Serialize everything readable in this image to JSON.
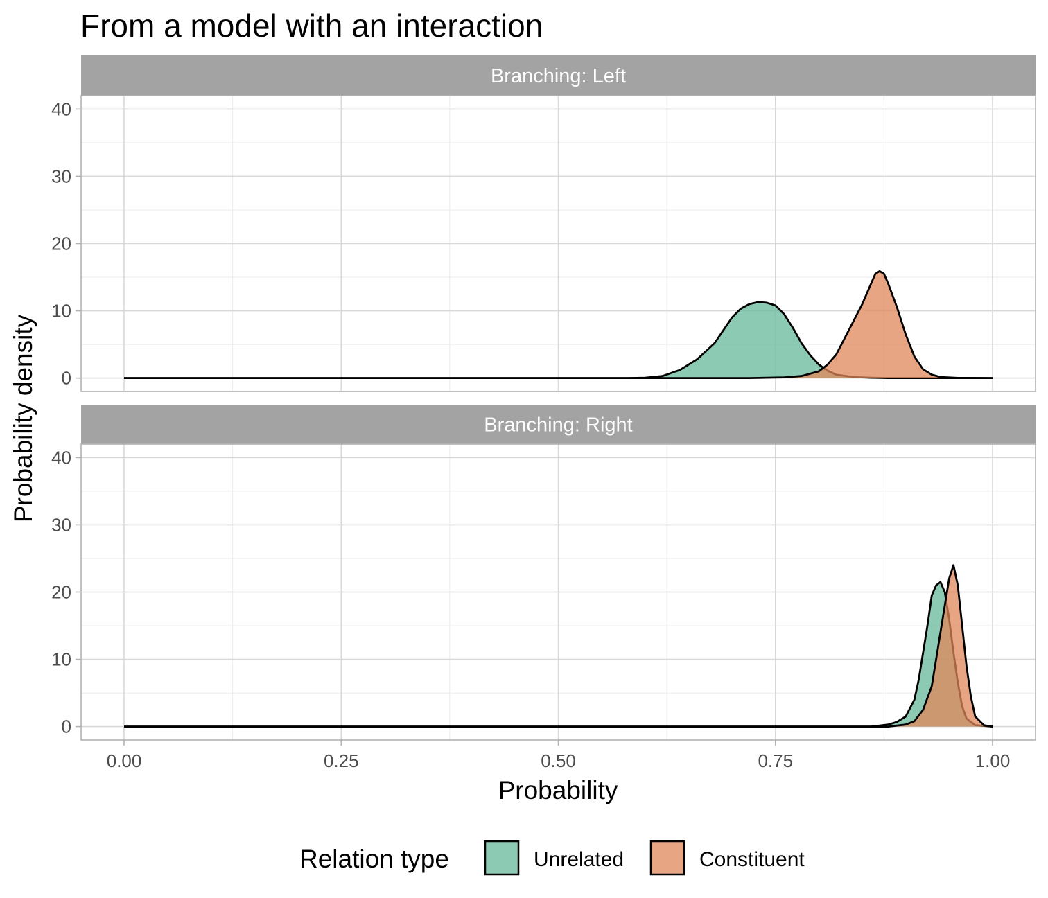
{
  "chart_data": {
    "type": "area",
    "title": "From a model with an interaction",
    "xlabel": "Probability",
    "ylabel": "Probability density",
    "xlim": [
      0,
      1
    ],
    "ylim": [
      -2,
      42
    ],
    "x_ticks": [
      "0.00",
      "0.25",
      "0.50",
      "0.75",
      "1.00"
    ],
    "y_ticks": [
      "0",
      "10",
      "20",
      "30",
      "40"
    ],
    "grid": true,
    "legend": {
      "title": "Relation type",
      "position": "bottom",
      "entries": [
        "Unrelated",
        "Constituent"
      ]
    },
    "colors": {
      "Unrelated": "#66b89a",
      "Constituent": "#e0875a"
    },
    "panels": [
      {
        "label": "Branching: Left",
        "series": [
          {
            "name": "Unrelated",
            "x": [
              0.0,
              0.58,
              0.6,
              0.62,
              0.64,
              0.66,
              0.68,
              0.7,
              0.71,
              0.72,
              0.73,
              0.74,
              0.75,
              0.76,
              0.77,
              0.78,
              0.79,
              0.8,
              0.81,
              0.82,
              0.84,
              0.86,
              0.88,
              1.0
            ],
            "y": [
              0,
              0,
              0.05,
              0.3,
              1.2,
              2.8,
              5.2,
              9.0,
              10.3,
              11.0,
              11.3,
              11.2,
              10.8,
              9.5,
              7.5,
              5.2,
              3.4,
              2.0,
              1.1,
              0.5,
              0.15,
              0.05,
              0,
              0
            ]
          },
          {
            "name": "Constituent",
            "x": [
              0.0,
              0.72,
              0.76,
              0.78,
              0.8,
              0.81,
              0.82,
              0.83,
              0.84,
              0.85,
              0.86,
              0.865,
              0.87,
              0.875,
              0.88,
              0.89,
              0.9,
              0.91,
              0.92,
              0.93,
              0.94,
              0.96,
              1.0
            ],
            "y": [
              0,
              0,
              0.1,
              0.3,
              1.0,
              2.0,
              3.5,
              6.0,
              8.5,
              11.0,
              14.0,
              15.5,
              15.9,
              15.5,
              14.0,
              10.5,
              6.5,
              3.2,
              1.3,
              0.5,
              0.15,
              0.02,
              0
            ]
          }
        ]
      },
      {
        "label": "Branching: Right",
        "series": [
          {
            "name": "Unrelated",
            "x": [
              0.0,
              0.86,
              0.88,
              0.89,
              0.9,
              0.91,
              0.915,
              0.92,
              0.925,
              0.93,
              0.935,
              0.94,
              0.945,
              0.95,
              0.955,
              0.96,
              0.965,
              0.97,
              0.98,
              1.0
            ],
            "y": [
              0,
              0,
              0.3,
              0.7,
              1.5,
              4.0,
              7.0,
              11.0,
              15.0,
              19.5,
              21.0,
              21.5,
              20.0,
              16.0,
              11.0,
              6.5,
              3.0,
              1.2,
              0.2,
              0
            ]
          },
          {
            "name": "Constituent",
            "x": [
              0.0,
              0.88,
              0.9,
              0.91,
              0.92,
              0.93,
              0.935,
              0.94,
              0.945,
              0.95,
              0.955,
              0.96,
              0.965,
              0.97,
              0.975,
              0.98,
              0.99,
              1.0
            ],
            "y": [
              0,
              0,
              0.3,
              0.8,
              2.5,
              6.0,
              10.0,
              14.0,
              18.0,
              22.0,
              24.0,
              21.0,
              15.0,
              9.0,
              4.5,
              1.5,
              0.2,
              0
            ]
          }
        ]
      }
    ]
  }
}
